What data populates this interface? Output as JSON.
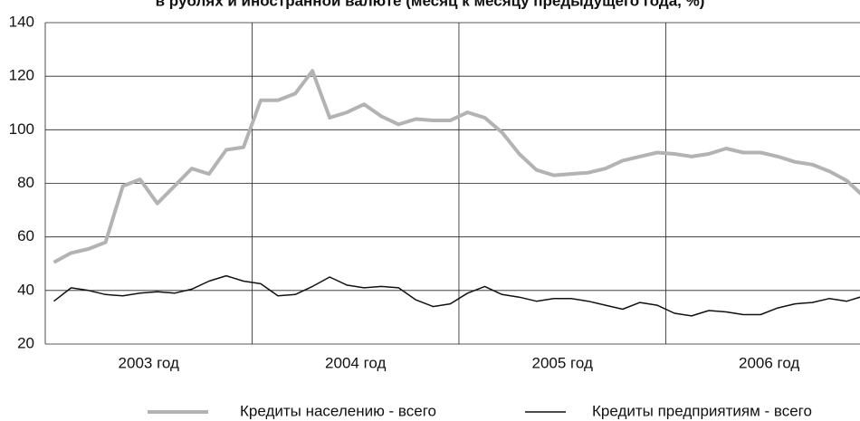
{
  "chart_data": {
    "type": "line",
    "title": "в рублях и иностранной валюте (месяц к месяцу предыдущего года, %)",
    "year_labels": [
      "2003 год",
      "2004 год",
      "2005 год",
      "2006 год"
    ],
    "ylim": [
      20,
      140
    ],
    "yticks": [
      20,
      40,
      60,
      80,
      100,
      120,
      140
    ],
    "grid": true,
    "legend": "bottom",
    "series": [
      {
        "name": "Кредиты населению - всего",
        "color": "#b3b3b3",
        "values": [
          50.5,
          54,
          55.5,
          58,
          79,
          81.5,
          72.5,
          79,
          85.5,
          83.5,
          92.5,
          93.5,
          111,
          111,
          113.5,
          122,
          104.5,
          106.5,
          109.5,
          105,
          102,
          104,
          103.5,
          103.5,
          106.5,
          104.5,
          99,
          91,
          85,
          83,
          83.5,
          84,
          85.5,
          88.5,
          90,
          91.5,
          91,
          90,
          91,
          93,
          91.5,
          91.5,
          90,
          88,
          87,
          84.5,
          81,
          75
        ]
      },
      {
        "name": "Кредиты предприятиям - всего",
        "color": "#111111",
        "values": [
          36,
          41,
          40,
          38.5,
          38,
          39,
          39.5,
          39,
          40.5,
          43.5,
          45.5,
          43.5,
          42.5,
          38,
          38.5,
          41.5,
          45,
          42,
          41,
          41.5,
          41,
          36.5,
          34,
          35,
          39,
          41.5,
          38.5,
          37.5,
          36,
          37,
          37,
          36,
          34.5,
          33,
          35.5,
          34.5,
          31.5,
          30.5,
          32.5,
          32,
          31,
          31,
          33.5,
          35,
          35.5,
          37,
          36,
          38
        ]
      }
    ]
  }
}
